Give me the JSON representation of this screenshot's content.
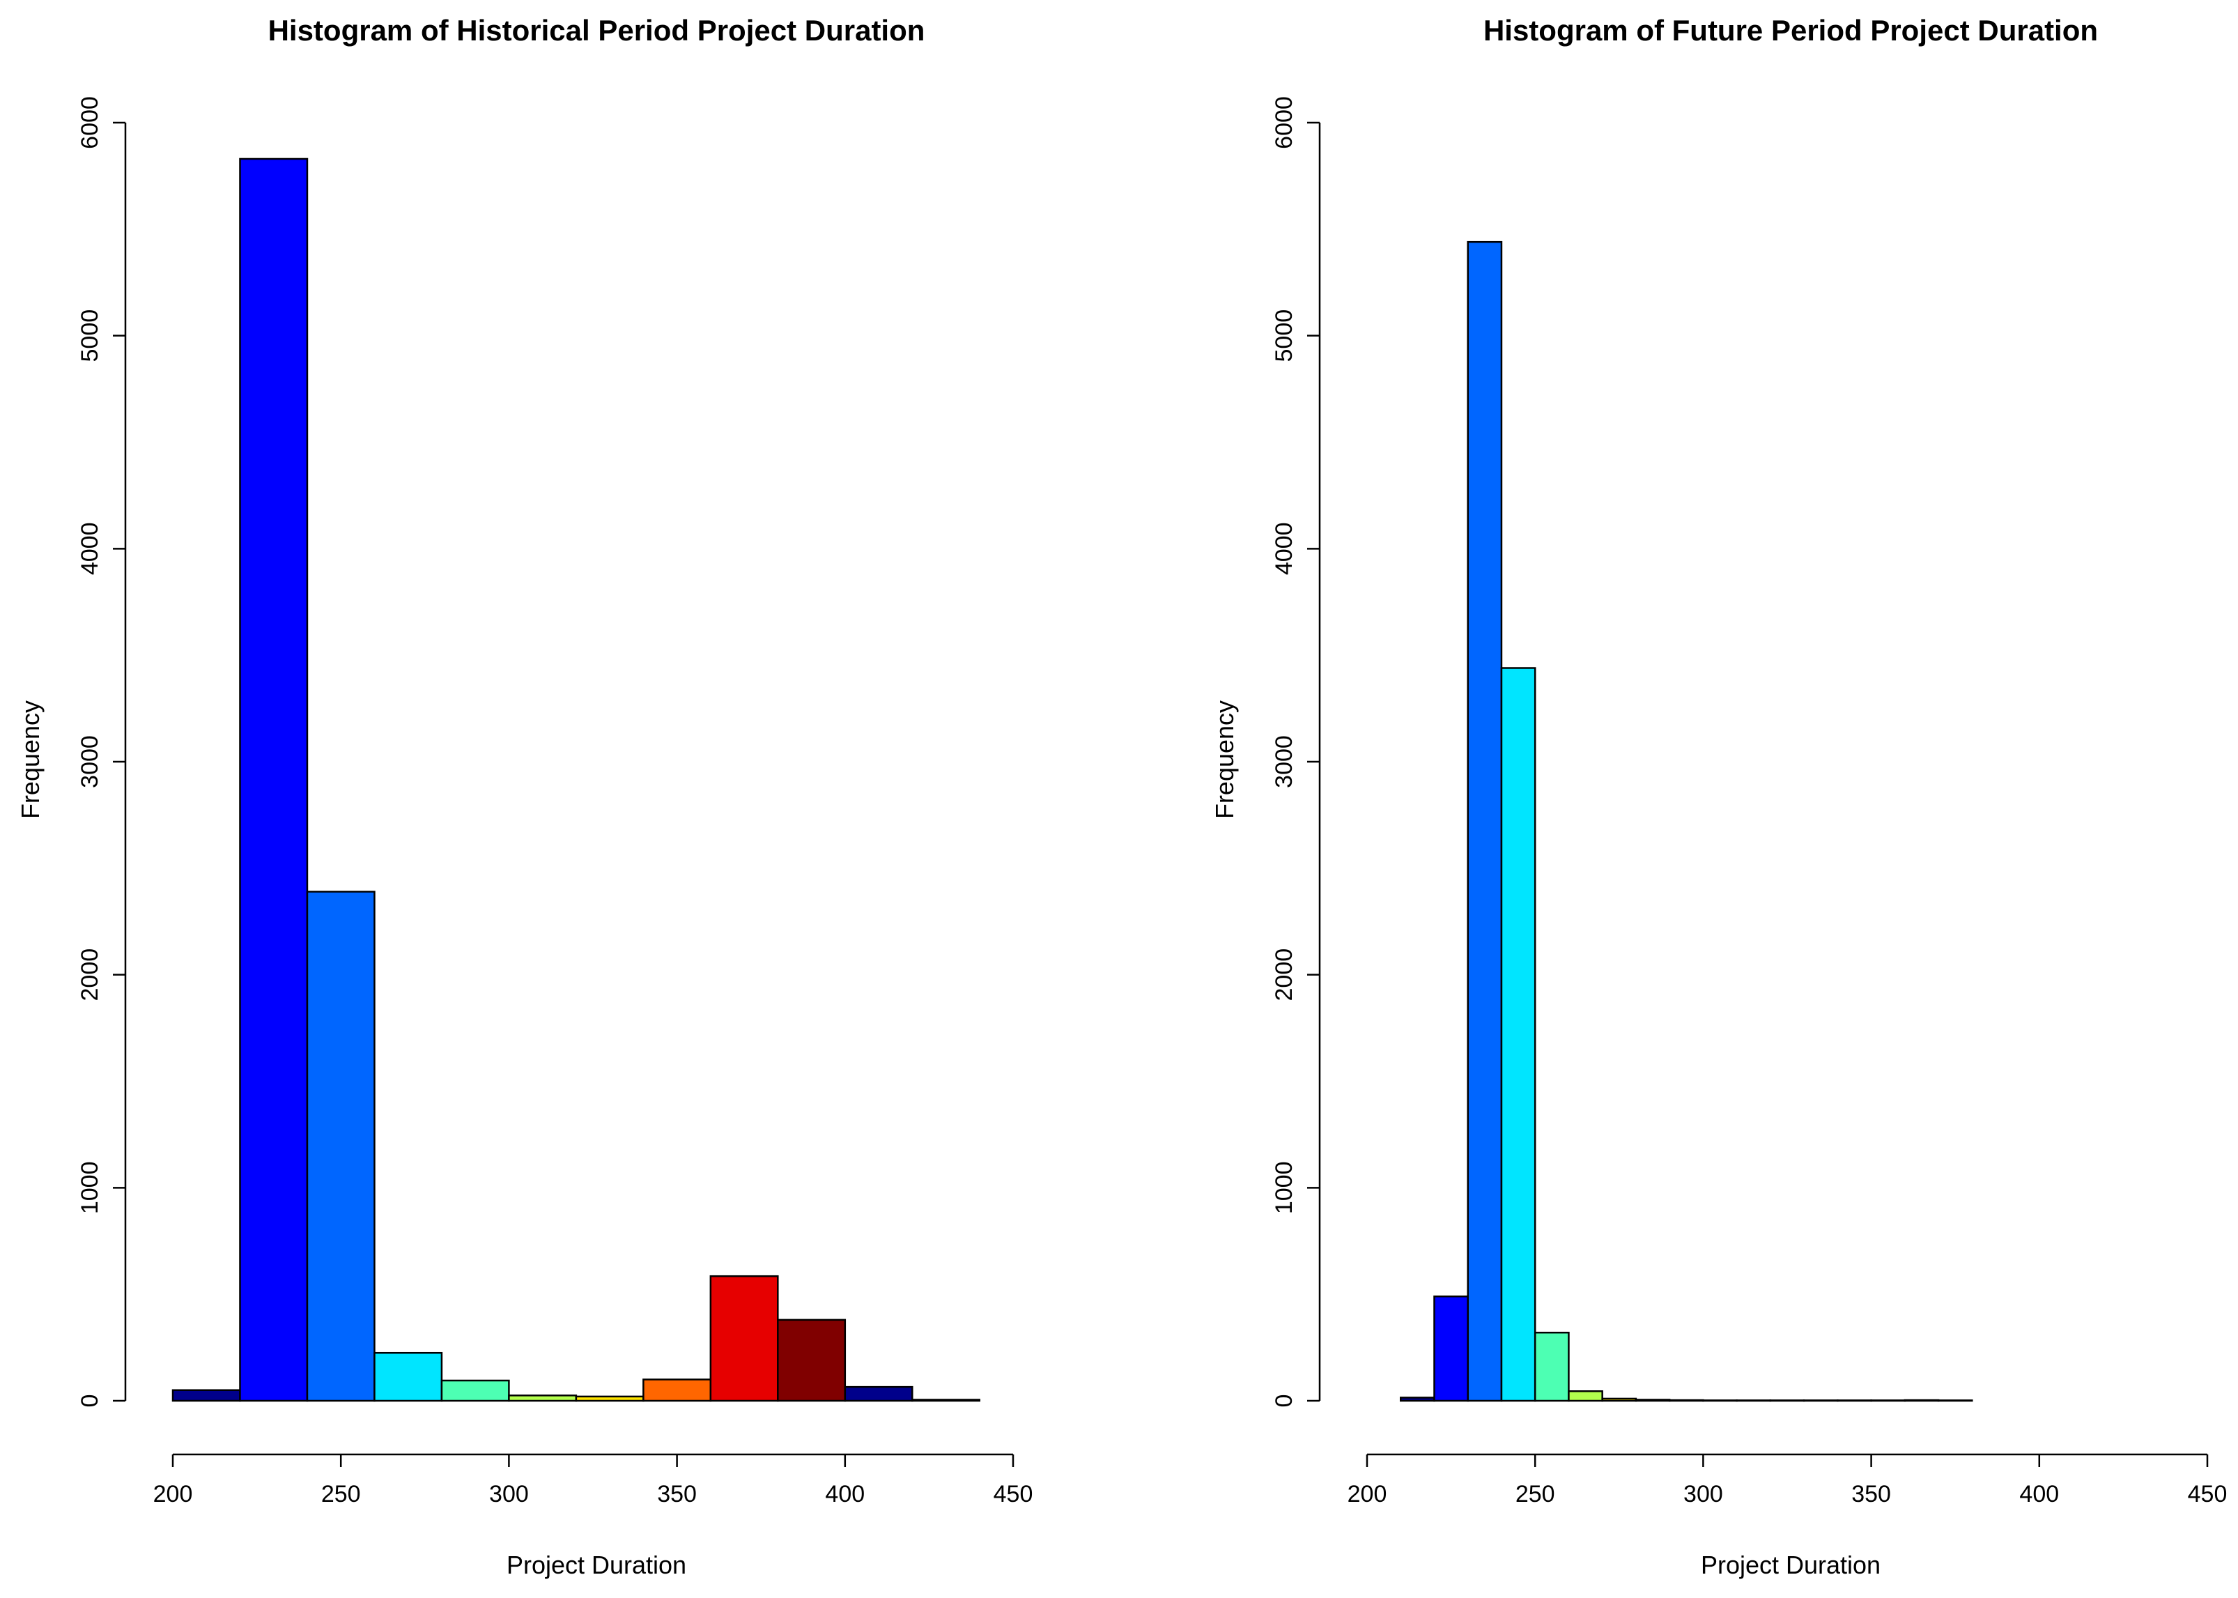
{
  "chart_data": [
    {
      "type": "bar",
      "title": "Histogram of Historical Period Project Duration",
      "xlabel": "Project Duration",
      "ylabel": "Frequency",
      "xlim": [
        200,
        450
      ],
      "ylim": [
        0,
        6000
      ],
      "xticks": [
        200,
        250,
        300,
        350,
        400,
        450
      ],
      "yticks": [
        0,
        1000,
        2000,
        3000,
        4000,
        5000,
        6000
      ],
      "bin_edges": [
        200,
        220,
        240,
        260,
        280,
        300,
        320,
        340,
        360,
        380,
        400,
        420,
        440
      ],
      "values": [
        50,
        5830,
        2390,
        225,
        95,
        25,
        20,
        100,
        585,
        380,
        65,
        5
      ],
      "colors": [
        "#00008B",
        "#0000FF",
        "#0066FF",
        "#00E5FF",
        "#4DFFB3",
        "#B3FF4D",
        "#FFE500",
        "#FF6600",
        "#E60000",
        "#800000",
        "#00008B",
        "#0000FF"
      ]
    },
    {
      "type": "bar",
      "title": "Histogram of Future Period Project Duration",
      "xlabel": "Project Duration",
      "ylabel": "Frequency",
      "xlim": [
        200,
        450
      ],
      "ylim": [
        0,
        6000
      ],
      "xticks": [
        200,
        250,
        300,
        350,
        400,
        450
      ],
      "yticks": [
        0,
        1000,
        2000,
        3000,
        4000,
        5000,
        6000
      ],
      "bin_edges": [
        210,
        220,
        230,
        240,
        250,
        260,
        270,
        280,
        290,
        300,
        310,
        320,
        330,
        340,
        350,
        360,
        370,
        380
      ],
      "values": [
        15,
        490,
        5440,
        3440,
        320,
        45,
        10,
        5,
        3,
        2,
        2,
        2,
        2,
        2,
        2,
        3,
        2
      ],
      "colors": [
        "#00008B",
        "#0000FF",
        "#0066FF",
        "#00E5FF",
        "#4DFFB3",
        "#B3FF4D",
        "#FFE500",
        "#FF6600",
        "#E60000",
        "#800000",
        "#00008B",
        "#0000FF",
        "#0066FF",
        "#00E5FF",
        "#4DFFB3",
        "#B3FF4D",
        "#FFE500"
      ]
    }
  ]
}
